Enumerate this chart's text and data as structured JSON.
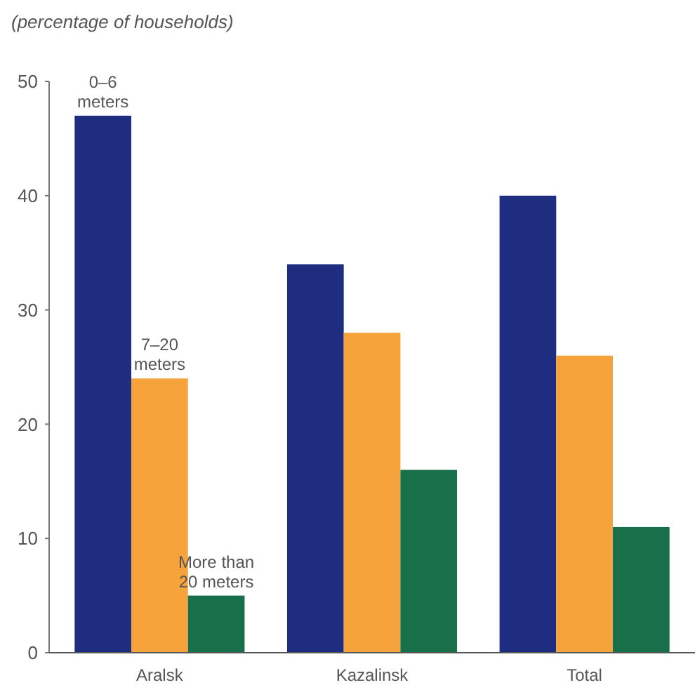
{
  "chart_data": {
    "type": "bar",
    "ylabel": "(percentage of households)",
    "categories": [
      "Aralsk",
      "Kazalinsk",
      "Total"
    ],
    "series": [
      {
        "name": "0–6 meters",
        "color": "#1e2d80",
        "values": [
          47,
          34,
          40
        ]
      },
      {
        "name": "7–20 meters",
        "color": "#f7a33c",
        "values": [
          24,
          28,
          26
        ]
      },
      {
        "name": "More than 20 meters",
        "color": "#17704a",
        "values": [
          5,
          16,
          11
        ]
      }
    ],
    "ylim": [
      0,
      50
    ],
    "yticks": [
      0,
      10,
      20,
      30,
      40,
      50
    ],
    "legend": false,
    "grid": false
  }
}
